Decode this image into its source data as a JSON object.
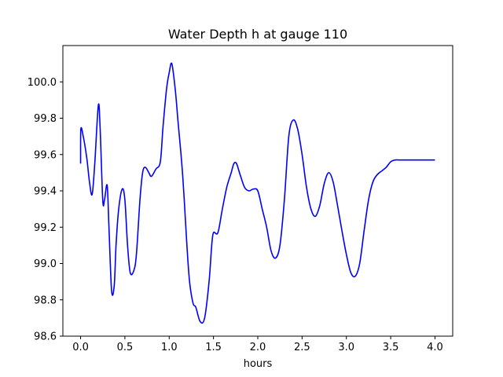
{
  "chart_data": {
    "type": "line",
    "title": "Water Depth h at gauge 110",
    "xlabel": "hours",
    "ylabel": "",
    "xlim": [
      -0.2,
      4.2
    ],
    "ylim": [
      98.6,
      100.2
    ],
    "xticks": [
      0.0,
      0.5,
      1.0,
      1.5,
      2.0,
      2.5,
      3.0,
      3.5,
      4.0
    ],
    "xtick_labels": [
      "0.0",
      "0.5",
      "1.0",
      "1.5",
      "2.0",
      "2.5",
      "3.0",
      "3.5",
      "4.0"
    ],
    "yticks": [
      98.6,
      98.8,
      99.0,
      99.2,
      99.4,
      99.6,
      99.8,
      100.0
    ],
    "ytick_labels": [
      "98.6",
      "98.8",
      "99.0",
      "99.2",
      "99.4",
      "99.6",
      "99.8",
      "100.0"
    ],
    "grid": false,
    "series": [
      {
        "color": "#0000ff",
        "x": [
          0.0,
          0.003,
          0.03,
          0.07,
          0.1,
          0.13,
          0.16,
          0.2,
          0.22,
          0.25,
          0.27,
          0.3,
          0.32,
          0.35,
          0.38,
          0.4,
          0.43,
          0.47,
          0.5,
          0.53,
          0.56,
          0.6,
          0.63,
          0.67,
          0.7,
          0.73,
          0.77,
          0.8,
          0.85,
          0.9,
          0.93,
          0.97,
          1.0,
          1.03,
          1.07,
          1.1,
          1.13,
          1.15,
          1.17,
          1.2,
          1.23,
          1.27,
          1.3,
          1.35,
          1.4,
          1.45,
          1.48,
          1.5,
          1.55,
          1.6,
          1.65,
          1.7,
          1.73,
          1.76,
          1.8,
          1.85,
          1.9,
          1.95,
          2.0,
          2.05,
          2.1,
          2.15,
          2.2,
          2.25,
          2.3,
          2.35,
          2.4,
          2.45,
          2.5,
          2.55,
          2.6,
          2.65,
          2.7,
          2.75,
          2.8,
          2.85,
          2.9,
          2.95,
          3.0,
          3.05,
          3.1,
          3.15,
          3.2,
          3.25,
          3.3,
          3.35,
          3.4,
          3.45,
          3.5,
          3.55,
          3.6,
          3.65,
          3.7,
          3.75,
          3.8,
          3.85,
          3.9,
          3.95,
          4.0
        ],
        "y": [
          99.55,
          99.74,
          99.7,
          99.58,
          99.45,
          99.38,
          99.55,
          99.87,
          99.75,
          99.35,
          99.35,
          99.43,
          99.2,
          98.85,
          98.88,
          99.1,
          99.3,
          99.41,
          99.35,
          99.1,
          98.95,
          98.96,
          99.05,
          99.35,
          99.5,
          99.53,
          99.5,
          99.48,
          99.52,
          99.56,
          99.75,
          99.96,
          100.05,
          100.1,
          99.95,
          99.78,
          99.62,
          99.5,
          99.35,
          99.1,
          98.9,
          98.78,
          98.76,
          98.68,
          98.7,
          98.9,
          99.1,
          99.17,
          99.17,
          99.3,
          99.42,
          99.5,
          99.55,
          99.55,
          99.49,
          99.42,
          99.4,
          99.41,
          99.4,
          99.3,
          99.2,
          99.07,
          99.03,
          99.1,
          99.35,
          99.7,
          99.79,
          99.74,
          99.6,
          99.42,
          99.3,
          99.26,
          99.32,
          99.44,
          99.5,
          99.45,
          99.32,
          99.18,
          99.05,
          98.95,
          98.93,
          99.0,
          99.18,
          99.35,
          99.45,
          99.49,
          99.51,
          99.53,
          99.56,
          99.57,
          99.57,
          99.57,
          99.57,
          99.57,
          99.57,
          99.57,
          99.57,
          99.57,
          99.57
        ]
      }
    ]
  }
}
